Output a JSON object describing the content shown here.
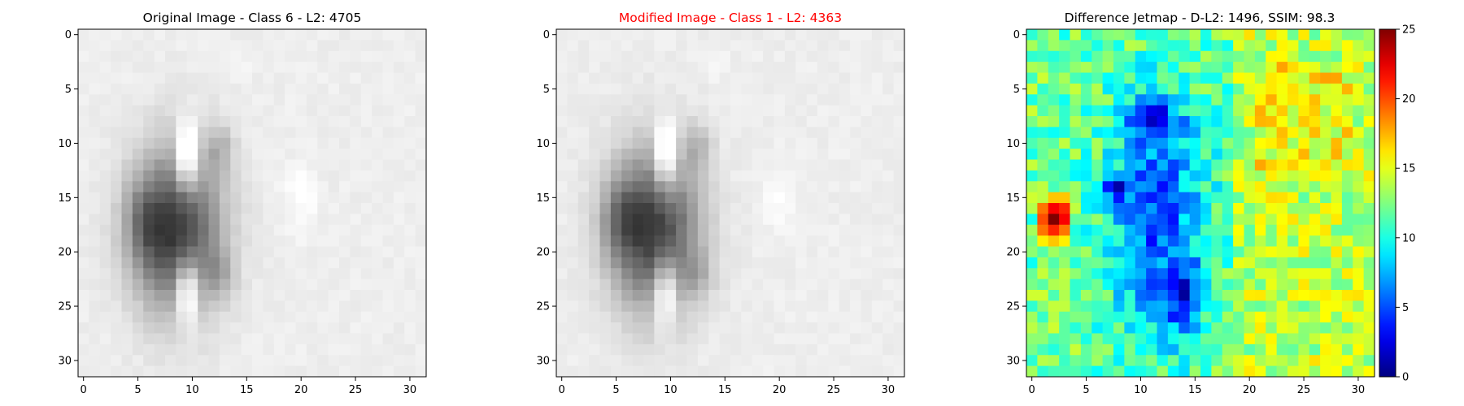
{
  "colors": {
    "title_default": "#000000",
    "title_highlight": "#ff0000",
    "axis": "#000000",
    "background": "#ffffff"
  },
  "chart_data": [
    {
      "type": "heatmap",
      "colormap": "gray",
      "title": "Original Image - Class 6 - L2: 4705",
      "title_color": "#000000",
      "xlim": [
        -0.5,
        31.5
      ],
      "ylim": [
        31.5,
        -0.5
      ],
      "x_ticks": [
        0,
        5,
        10,
        15,
        20,
        25,
        30
      ],
      "y_ticks": [
        0,
        5,
        10,
        15,
        20,
        25,
        30
      ],
      "grid": false,
      "image_size": [
        32,
        32
      ],
      "pixel_model": {
        "value_range": [
          0,
          255
        ],
        "background": 238,
        "ring": {
          "center": [
            8.5,
            18
          ],
          "radii": [
            4.0,
            7.2
          ],
          "darkness": 185
        },
        "holes": [
          {
            "center": [
              9.5,
              11.5
            ],
            "radii": [
              1.0,
              3.2
            ],
            "lightness": 120
          },
          {
            "center": [
              9.5,
              23.5
            ],
            "radii": [
              1.0,
              3.2
            ],
            "lightness": 115
          }
        ],
        "dark_spots": [
          {
            "center": [
              5.5,
              17.5
            ],
            "radii": [
              1.6,
              3.5
            ],
            "darkness": 55
          },
          {
            "center": [
              12.5,
              10.5
            ],
            "radii": [
              1.3,
              2.2
            ],
            "darkness": 45
          },
          {
            "center": [
              12.5,
              22.0
            ],
            "radii": [
              1.3,
              2.0
            ],
            "darkness": 40
          }
        ],
        "highlights": [
          {
            "center": [
              20,
              15
            ],
            "radii": [
              1.4,
              3.0
            ],
            "lightness": 18
          },
          {
            "center": [
              14,
              3
            ],
            "radii": [
              1.5,
              1.0
            ],
            "lightness": 10
          }
        ]
      }
    },
    {
      "type": "heatmap",
      "colormap": "gray",
      "title": "Modified Image - Class 1 - L2: 4363",
      "title_color": "#ff0000",
      "xlim": [
        -0.5,
        31.5
      ],
      "ylim": [
        31.5,
        -0.5
      ],
      "x_ticks": [
        0,
        5,
        10,
        15,
        20,
        25,
        30
      ],
      "y_ticks": [
        0,
        5,
        10,
        15,
        20,
        25,
        30
      ],
      "grid": false,
      "image_size": [
        32,
        32
      ],
      "pixel_model": {
        "value_range": [
          0,
          255
        ],
        "background": 238,
        "ring": {
          "center": [
            8.5,
            18
          ],
          "radii": [
            4.0,
            7.2
          ],
          "darkness": 180
        },
        "holes": [
          {
            "center": [
              9.5,
              11.5
            ],
            "radii": [
              1.0,
              3.2
            ],
            "lightness": 110
          },
          {
            "center": [
              9.5,
              23.5
            ],
            "radii": [
              1.0,
              3.2
            ],
            "lightness": 110
          }
        ],
        "dark_spots": [
          {
            "center": [
              5.5,
              17.0
            ],
            "radii": [
              1.8,
              3.5
            ],
            "darkness": 60
          },
          {
            "center": [
              12.5,
              10.5
            ],
            "radii": [
              1.3,
              2.2
            ],
            "darkness": 45
          },
          {
            "center": [
              12.5,
              22.0
            ],
            "radii": [
              1.3,
              2.0
            ],
            "darkness": 35
          }
        ],
        "highlights": [
          {
            "center": [
              20,
              15
            ],
            "radii": [
              1.4,
              3.0
            ],
            "lightness": 16
          },
          {
            "center": [
              14,
              3
            ],
            "radii": [
              1.5,
              1.0
            ],
            "lightness": 10
          }
        ]
      }
    },
    {
      "type": "heatmap",
      "colormap": "jet",
      "title": "Difference Jetmap - D-L2: 1496, SSIM: 98.3",
      "title_color": "#000000",
      "xlim": [
        -0.5,
        31.5
      ],
      "ylim": [
        31.5,
        -0.5
      ],
      "x_ticks": [
        0,
        5,
        10,
        15,
        20,
        25,
        30
      ],
      "y_ticks": [
        0,
        5,
        10,
        15,
        20,
        25,
        30
      ],
      "grid": false,
      "image_size": [
        32,
        32
      ],
      "colorbar": {
        "vmin": 0,
        "vmax": 25,
        "ticks": [
          0,
          5,
          10,
          15,
          20,
          25
        ],
        "placement": "right"
      },
      "pixel_model": {
        "baseline": 12,
        "right_region": {
          "x_from": 19,
          "value": 14
        },
        "upper_right_bright": {
          "x": [
            21,
            29
          ],
          "y": [
            3,
            12
          ],
          "value": 15.5
        },
        "low_band": {
          "center": [
            11.5,
            17
          ],
          "radii": [
            4.3,
            11
          ],
          "value": 5
        },
        "very_low": [
          {
            "center": [
              11,
              8
            ],
            "radii": [
              2.5,
              1.5
            ],
            "value": 1
          },
          {
            "center": [
              14,
              24
            ],
            "radii": [
              1.5,
              3.0
            ],
            "value": 2
          },
          {
            "center": [
              8,
              14
            ],
            "radii": [
              2.0,
              1.2
            ],
            "value": 3
          }
        ],
        "hot_spot": {
          "rows": [
            {
              "y": 15,
              "x": [
                1,
                2,
                3
              ],
              "values": [
                14,
                17,
                17
              ]
            },
            {
              "y": 16,
              "x": [
                1,
                2,
                3
              ],
              "values": [
                19,
                22,
                21
              ]
            },
            {
              "y": 17,
              "x": [
                1,
                2,
                3
              ],
              "values": [
                20,
                25,
                22
              ]
            },
            {
              "y": 18,
              "x": [
                1,
                2,
                3
              ],
              "values": [
                19,
                21,
                19
              ]
            },
            {
              "y": 19,
              "x": [
                1,
                2,
                3
              ],
              "values": [
                16,
                17,
                16
              ]
            }
          ]
        }
      }
    }
  ]
}
